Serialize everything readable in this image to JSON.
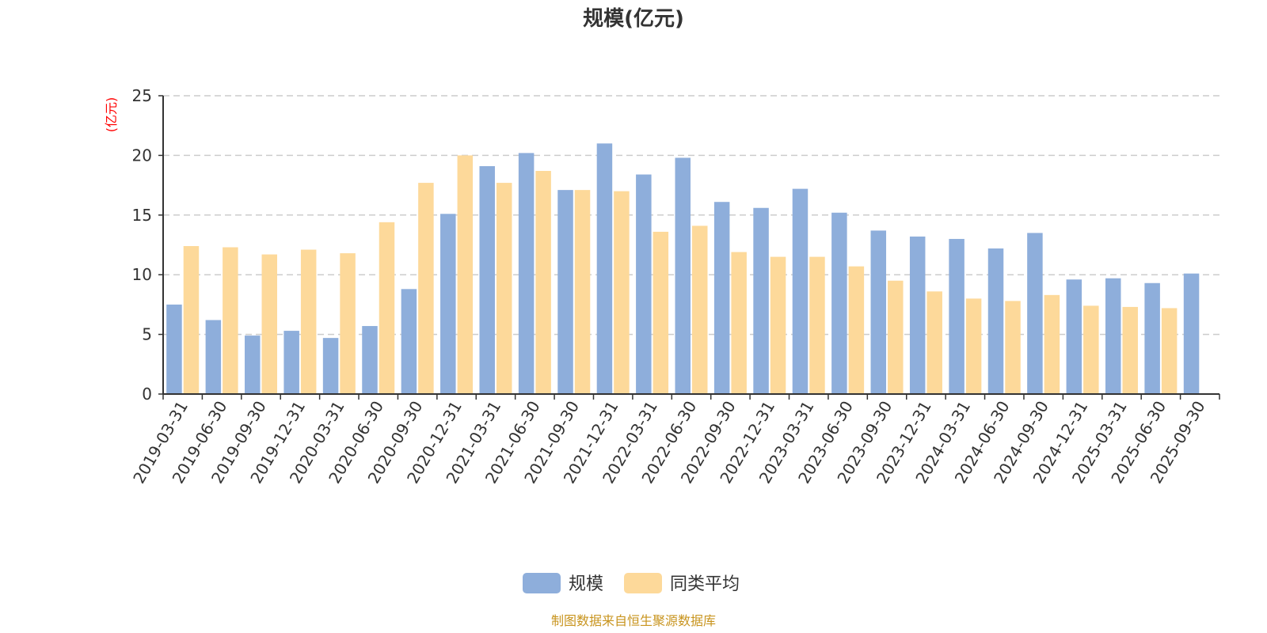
{
  "chart_data": {
    "type": "bar",
    "title": "规模(亿元)",
    "ylabel": "(亿元)",
    "xlabel": "",
    "ylim": [
      0,
      25
    ],
    "yticks": [
      0,
      5,
      10,
      15,
      20,
      25
    ],
    "grid": true,
    "legend_position": "bottom-center",
    "categories": [
      "2019-03-31",
      "2019-06-30",
      "2019-09-30",
      "2019-12-31",
      "2020-03-31",
      "2020-06-30",
      "2020-09-30",
      "2020-12-31",
      "2021-03-31",
      "2021-06-30",
      "2021-09-30",
      "2021-12-31",
      "2022-03-31",
      "2022-06-30",
      "2022-09-30",
      "2022-12-31",
      "2023-03-31",
      "2023-06-30",
      "2023-09-30",
      "2023-12-31",
      "2024-03-31",
      "2024-06-30",
      "2024-09-30",
      "2024-12-31",
      "2025-03-31",
      "2025-06-30",
      "2025-09-30"
    ],
    "series": [
      {
        "name": "规模",
        "color": "#8eaedb",
        "values": [
          7.5,
          6.2,
          4.9,
          5.3,
          4.7,
          5.7,
          8.8,
          15.1,
          19.1,
          20.2,
          17.1,
          21.0,
          18.4,
          19.8,
          16.1,
          15.6,
          17.2,
          15.2,
          13.7,
          13.2,
          13.0,
          12.2,
          13.5,
          9.6,
          9.7,
          9.3,
          10.1
        ]
      },
      {
        "name": "同类平均",
        "color": "#fdd99a",
        "values": [
          12.4,
          12.3,
          11.7,
          12.1,
          11.8,
          14.4,
          17.7,
          20.0,
          17.7,
          18.7,
          17.1,
          17.0,
          13.6,
          14.1,
          11.9,
          11.5,
          11.5,
          10.7,
          9.5,
          8.6,
          8.0,
          7.8,
          8.3,
          7.4,
          7.3,
          7.2,
          null
        ]
      }
    ]
  },
  "source_text": "制图数据来自恒生聚源数据库",
  "colors": {
    "axis": "#333333",
    "grid": "#cccccc",
    "unit_label": "#ff0000",
    "source": "#c8941e"
  }
}
